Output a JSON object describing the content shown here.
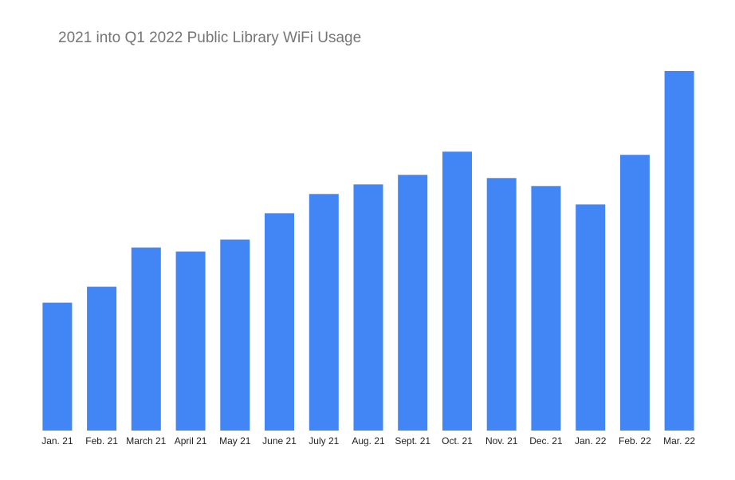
{
  "chart_data": {
    "type": "bar",
    "title": "2021 into Q1 2022 Public Library WiFi Usage",
    "xlabel": "",
    "ylabel": "",
    "categories": [
      "Jan. 21",
      "Feb. 21",
      "March 21",
      "April 21",
      "May 21",
      "June 21",
      "July 21",
      "Aug. 21",
      "Sept. 21",
      "Oct. 21",
      "Nov. 21",
      "Dec. 21",
      "Jan. 22",
      "Feb. 22",
      "Mar. 22"
    ],
    "values": [
      160,
      180,
      229,
      224,
      239,
      272,
      296,
      308,
      320,
      349,
      316,
      306,
      283,
      345,
      450
    ],
    "ylim": [
      0,
      450
    ],
    "grid": false,
    "legend": "none",
    "bar_color": "#4285f4"
  }
}
